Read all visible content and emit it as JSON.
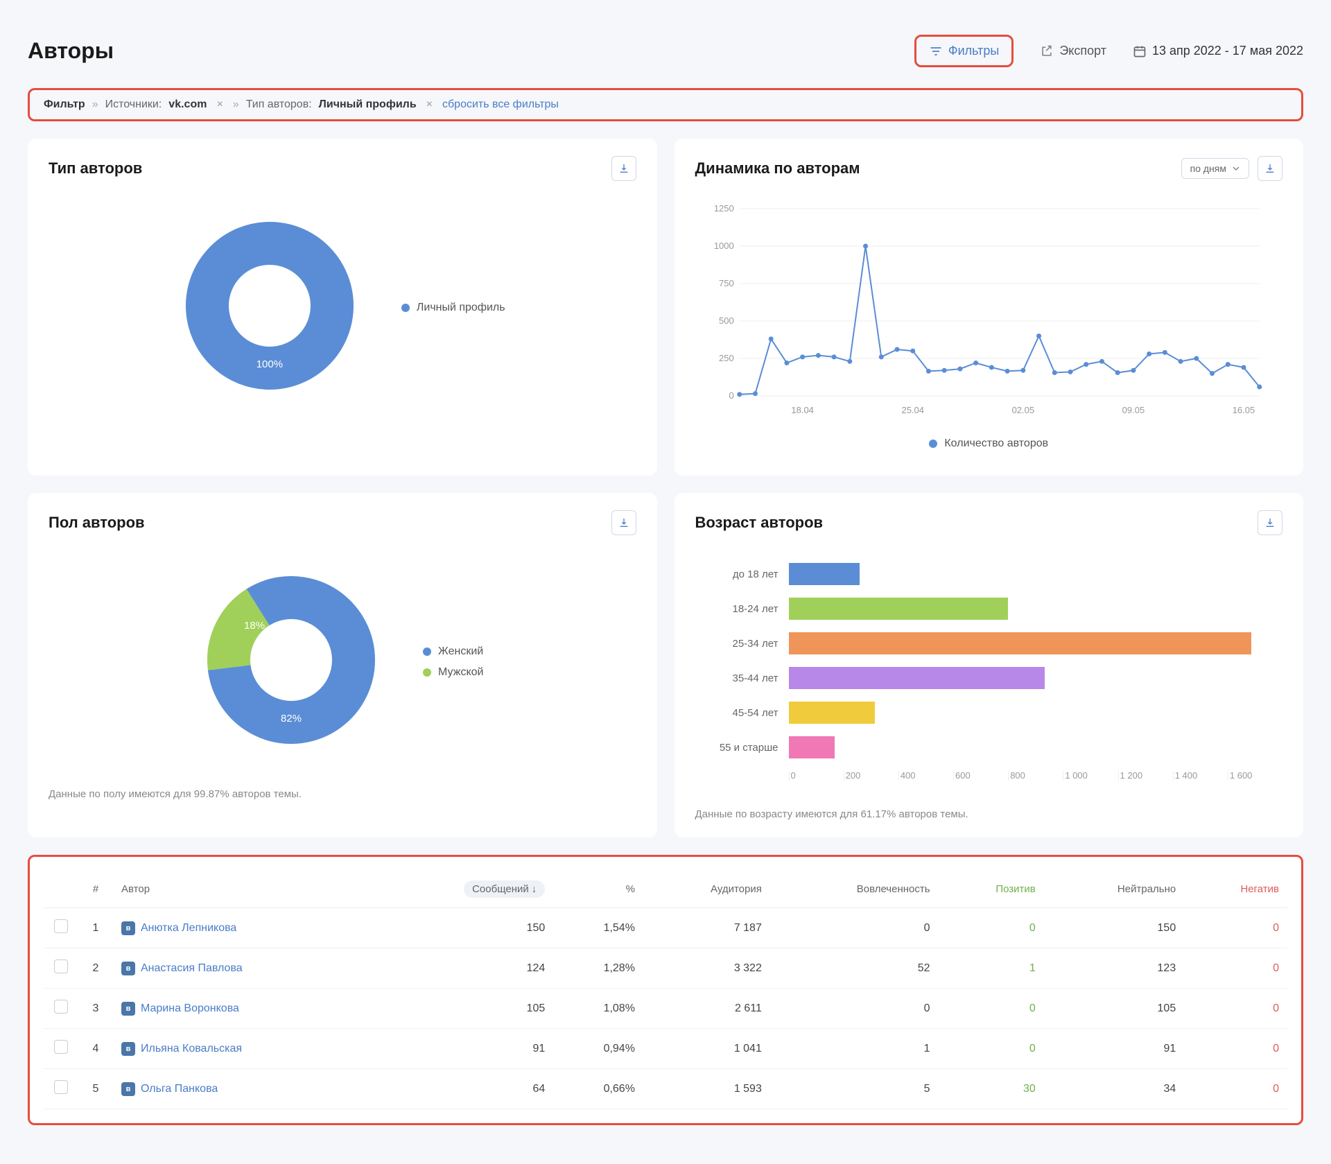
{
  "header": {
    "title": "Авторы",
    "filters_btn": "Фильтры",
    "export_btn": "Экспорт",
    "date_range": "13 апр 2022 - 17 мая 2022"
  },
  "filter_bar": {
    "label": "Фильтр",
    "sources_label": "Источники:",
    "sources_value": "vk.com",
    "type_label": "Тип авторов:",
    "type_value": "Личный профиль",
    "reset": "сбросить все фильтры"
  },
  "type_card": {
    "title": "Тип авторов",
    "donut_pct": "100%",
    "legend_label": "Личный профиль",
    "color": "#5a8dd6"
  },
  "dynamics_card": {
    "title": "Динамика по авторам",
    "select_label": "по дням",
    "legend_label": "Количество авторов",
    "color": "#5a8dd6",
    "y_max": 1250,
    "y_ticks": [
      0,
      250,
      500,
      750,
      1000,
      1250
    ],
    "x_labels": [
      "18.04",
      "25.04",
      "02.05",
      "09.05",
      "16.05"
    ],
    "values": [
      10,
      15,
      380,
      220,
      260,
      270,
      260,
      230,
      1000,
      260,
      310,
      300,
      165,
      170,
      180,
      220,
      190,
      165,
      170,
      400,
      155,
      160,
      210,
      230,
      155,
      170,
      280,
      290,
      230,
      250,
      150,
      210,
      190,
      60
    ]
  },
  "gender_card": {
    "title": "Пол авторов",
    "female_pct": 82,
    "male_pct": 18,
    "female_label": "Женский",
    "male_label": "Мужской",
    "female_color": "#5a8dd6",
    "male_color": "#a0d05a",
    "footer": "Данные по полу имеются для 99.87% авторов темы."
  },
  "age_card": {
    "title": "Возраст авторов",
    "footer": "Данные по возрасту имеются для 61.17% авторов темы.",
    "x_max": 1600,
    "x_ticks": [
      0,
      200,
      400,
      600,
      800,
      "1 000",
      "1 200",
      "1 400",
      "1 600"
    ],
    "rows": [
      {
        "label": "до 18 лет",
        "value": 230,
        "color": "#5a8dd6"
      },
      {
        "label": "18-24 лет",
        "value": 710,
        "color": "#a0d05a"
      },
      {
        "label": "25-34 лет",
        "value": 1500,
        "color": "#f0955a"
      },
      {
        "label": "35-44 лет",
        "value": 830,
        "color": "#b888e8"
      },
      {
        "label": "45-54 лет",
        "value": 280,
        "color": "#f0cc3c"
      },
      {
        "label": "55 и старше",
        "value": 150,
        "color": "#f078b4"
      }
    ]
  },
  "table": {
    "headers": {
      "num": "#",
      "author": "Автор",
      "messages": "Сообщений",
      "pct": "%",
      "audience": "Аудитория",
      "engagement": "Вовлеченность",
      "positive": "Позитив",
      "neutral": "Нейтрально",
      "negative": "Негатив"
    },
    "rows": [
      {
        "num": 1,
        "name": "Анютка Лепникова",
        "messages": 150,
        "pct": "1,54%",
        "audience": "7 187",
        "engagement": 0,
        "positive": 0,
        "neutral": 150,
        "negative": 0
      },
      {
        "num": 2,
        "name": "Анастасия Павлова",
        "messages": 124,
        "pct": "1,28%",
        "audience": "3 322",
        "engagement": 52,
        "positive": 1,
        "neutral": 123,
        "negative": 0
      },
      {
        "num": 3,
        "name": "Марина Воронкова",
        "messages": 105,
        "pct": "1,08%",
        "audience": "2 611",
        "engagement": 0,
        "positive": 0,
        "neutral": 105,
        "negative": 0
      },
      {
        "num": 4,
        "name": "Ильяна Ковальская",
        "messages": 91,
        "pct": "0,94%",
        "audience": "1 041",
        "engagement": 1,
        "positive": 0,
        "neutral": 91,
        "negative": 0
      },
      {
        "num": 5,
        "name": "Ольга Панкова",
        "messages": 64,
        "pct": "0,66%",
        "audience": "1 593",
        "engagement": 5,
        "positive": 30,
        "neutral": 34,
        "negative": 0
      }
    ]
  }
}
